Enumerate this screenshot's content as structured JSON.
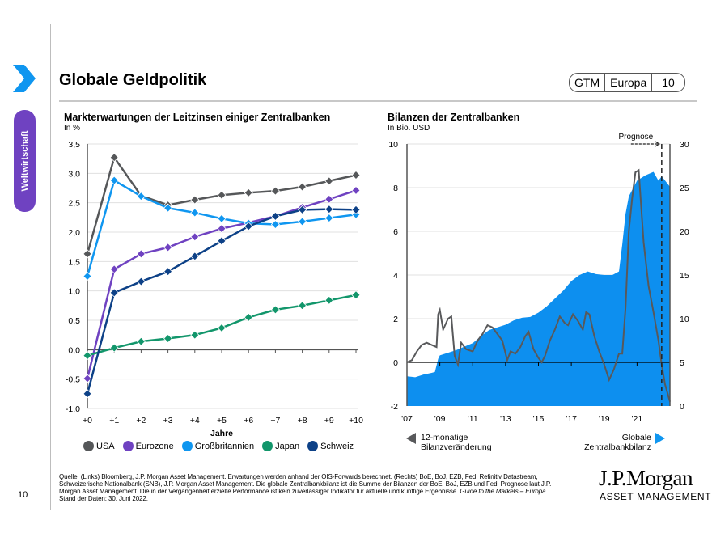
{
  "sidebar": {
    "section_label": "Weltwirtschaft",
    "page_number": "10"
  },
  "header": {
    "title": "Globale Geldpolitik",
    "badge": [
      "GTM",
      "Europa",
      "10"
    ]
  },
  "left_chart": {
    "title": "Markterwartungen der Leitzinsen einiger Zentralbanken",
    "unit": "In %"
  },
  "right_chart": {
    "title": "Bilanzen der Zentralbanken",
    "unit": "In Bio. USD",
    "forecast_label": "Prognose",
    "legend_left": [
      "12-monatige",
      "Bilanzveränderung"
    ],
    "legend_right": [
      "Globale",
      "Zentralbankbilanz"
    ]
  },
  "chart_data": [
    {
      "type": "line",
      "title": "Markterwartungen der Leitzinsen einiger Zentralbanken",
      "ylabel": "In %",
      "xlabel": "Jahre",
      "categories": [
        "+0",
        "+1",
        "+2",
        "+3",
        "+4",
        "+5",
        "+6",
        "+7",
        "+8",
        "+9",
        "+10"
      ],
      "ylim": [
        -1.0,
        3.5
      ],
      "yticks": [
        -1.0,
        -0.5,
        0.0,
        0.5,
        1.0,
        1.5,
        2.0,
        2.5,
        3.0,
        3.5
      ],
      "ytick_labels": [
        "-1,0",
        "-0,5",
        "0,0",
        "0,5",
        "1,0",
        "1,5",
        "2,0",
        "2,5",
        "3,0",
        "3,5"
      ],
      "grid": true,
      "legend": "bottom",
      "series": [
        {
          "name": "USA",
          "color": "#555759",
          "values": [
            1.63,
            3.27,
            2.62,
            2.46,
            2.55,
            2.63,
            2.67,
            2.7,
            2.77,
            2.87,
            2.97
          ]
        },
        {
          "name": "Eurozone",
          "color": "#6f42c1",
          "values": [
            -0.49,
            1.37,
            1.63,
            1.74,
            1.92,
            2.06,
            2.16,
            2.27,
            2.42,
            2.56,
            2.71
          ]
        },
        {
          "name": "Großbritannien",
          "color": "#0f96f0",
          "values": [
            1.25,
            2.88,
            2.61,
            2.41,
            2.33,
            2.23,
            2.15,
            2.13,
            2.18,
            2.24,
            2.3
          ]
        },
        {
          "name": "Japan",
          "color": "#12966b",
          "values": [
            -0.1,
            0.03,
            0.14,
            0.19,
            0.25,
            0.37,
            0.55,
            0.68,
            0.75,
            0.84,
            0.93
          ]
        },
        {
          "name": "Schweiz",
          "color": "#0d4187",
          "values": [
            -0.75,
            0.97,
            1.16,
            1.33,
            1.59,
            1.85,
            2.1,
            2.27,
            2.38,
            2.39,
            2.38
          ]
        }
      ]
    },
    {
      "type": "area",
      "title": "Bilanzen der Zentralbanken",
      "ylabel": "In Bio. USD",
      "x_ticks": [
        "'07",
        "'09",
        "'11",
        "'13",
        "'15",
        "'17",
        "'19",
        "'21"
      ],
      "xlim": [
        2007.0,
        2023.0
      ],
      "forecast_start": 2022.5,
      "y_left": {
        "lim": [
          -2,
          10
        ],
        "ticks": [
          -2,
          0,
          2,
          4,
          6,
          8,
          10
        ],
        "label": "12-monatige Bilanzveränderung"
      },
      "y_right": {
        "lim": [
          0,
          30
        ],
        "ticks": [
          0,
          5,
          10,
          15,
          20,
          25,
          30
        ],
        "label": "Globale Zentralbankbilanz"
      },
      "series": [
        {
          "name": "Globale Zentralbankbilanz",
          "axis": "right",
          "color": "#0d8fef",
          "x": [
            2007.0,
            2007.5,
            2008.0,
            2008.5,
            2008.7,
            2008.9,
            2009.0,
            2009.5,
            2010.0,
            2010.5,
            2011.0,
            2011.5,
            2012.0,
            2012.5,
            2013.0,
            2013.5,
            2014.0,
            2014.5,
            2015.0,
            2015.5,
            2016.0,
            2016.5,
            2017.0,
            2017.5,
            2018.0,
            2018.5,
            2019.0,
            2019.5,
            2019.9,
            2020.1,
            2020.3,
            2020.5,
            2021.0,
            2021.5,
            2022.0,
            2022.3,
            2022.5,
            2023.0
          ],
          "values": [
            3.4,
            3.3,
            3.6,
            3.8,
            3.9,
            5.4,
            5.8,
            6.1,
            6.4,
            6.8,
            7.2,
            8.0,
            8.7,
            9.0,
            9.3,
            9.8,
            10.1,
            10.2,
            10.7,
            11.4,
            12.3,
            13.2,
            14.3,
            15.0,
            15.4,
            15.1,
            15.0,
            15.0,
            15.4,
            18.5,
            22.0,
            24.0,
            25.8,
            26.4,
            26.8,
            25.8,
            26.3,
            25.1
          ]
        },
        {
          "name": "12-monatige Bilanzveränderung",
          "axis": "left",
          "color": "#58595b",
          "x": [
            2007.0,
            2007.3,
            2007.6,
            2007.9,
            2008.2,
            2008.5,
            2008.8,
            2008.9,
            2009.0,
            2009.2,
            2009.5,
            2009.7,
            2009.9,
            2010.1,
            2010.3,
            2010.6,
            2011.0,
            2011.3,
            2011.6,
            2011.9,
            2012.2,
            2012.5,
            2012.8,
            2013.1,
            2013.3,
            2013.6,
            2013.9,
            2014.2,
            2014.4,
            2014.7,
            2015.0,
            2015.2,
            2015.4,
            2015.7,
            2016.0,
            2016.3,
            2016.6,
            2016.8,
            2017.1,
            2017.4,
            2017.7,
            2017.9,
            2018.1,
            2018.4,
            2018.7,
            2019.0,
            2019.3,
            2019.6,
            2019.9,
            2020.1,
            2020.3,
            2020.5,
            2020.7,
            2020.9,
            2021.1,
            2021.4,
            2021.7,
            2022.0,
            2022.3,
            2022.5,
            2022.7,
            2023.0
          ],
          "values": [
            0.0,
            0.1,
            0.5,
            0.8,
            0.9,
            0.8,
            0.7,
            2.2,
            2.4,
            1.5,
            2.0,
            2.1,
            0.3,
            -0.1,
            0.9,
            0.6,
            0.5,
            1.0,
            1.3,
            1.7,
            1.6,
            1.3,
            1.0,
            0.1,
            0.5,
            0.4,
            0.7,
            1.2,
            1.4,
            0.6,
            0.2,
            0.0,
            0.3,
            1.0,
            1.5,
            2.1,
            1.8,
            1.7,
            2.2,
            1.9,
            1.5,
            2.3,
            2.2,
            1.2,
            0.5,
            -0.1,
            -0.8,
            -0.3,
            0.4,
            0.4,
            2.5,
            6.0,
            7.5,
            8.7,
            8.8,
            5.5,
            3.5,
            2.3,
            1.0,
            -0.1,
            -1.0,
            -1.8
          ]
        }
      ]
    }
  ],
  "footer": {
    "source_1": "Quelle: (Links) Bloomberg, J.P. Morgan Asset Management. Erwartungen werden anhand der OIS-Forwards berechnet. (Rechts) BoE, BoJ, EZB, Fed, Refinitiv Datastream, Schweizerische Nationalbank (SNB), J.P. Morgan Asset Management. Die globale Zentralbankbilanz ist die Summe der Bilanzen der BoE, BoJ, EZB und Fed. Prognose laut J.P. Morgan Asset Management. Die in der Vergangenheit erzielte Performance ist kein zuverlässiger Indikator für aktuelle und künftige Ergebnisse. ",
    "source_italic": "Guide to the Markets – Europa",
    "source_2": ". Stand der Daten: 30. Juni 2022.",
    "logo_main": "J.P.Morgan",
    "logo_sub": "ASSET MANAGEMENT"
  }
}
